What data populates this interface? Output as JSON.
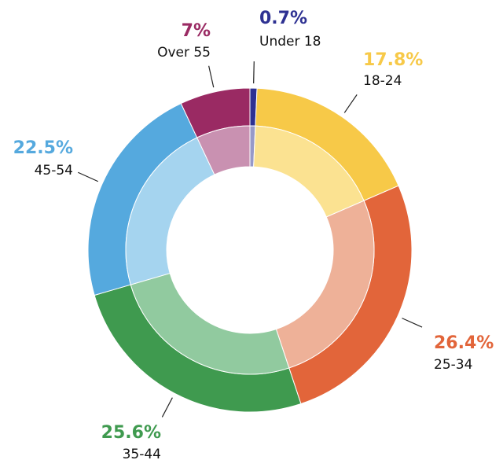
{
  "chart_data": {
    "type": "pie",
    "variant": "double-ring donut",
    "categories": [
      "Under 18",
      "18-24",
      "25-34",
      "35-44",
      "45-54",
      "Over 55"
    ],
    "values": [
      0.7,
      17.8,
      26.4,
      25.6,
      22.5,
      7
    ],
    "value_labels": [
      "0.7%",
      "17.8%",
      "26.4%",
      "25.6%",
      "22.5%",
      "7%"
    ],
    "colors": [
      "#2e3192",
      "#f7c948",
      "#e2653a",
      "#3f9a4f",
      "#55a9de",
      "#9a2a63"
    ],
    "inner_colors": [
      "#9799c9",
      "#fbe291",
      "#eeb198",
      "#91ca9f",
      "#a5d4ef",
      "#c991b1"
    ],
    "start_angle_deg": 0,
    "direction": "clockwise",
    "legend": "none"
  }
}
